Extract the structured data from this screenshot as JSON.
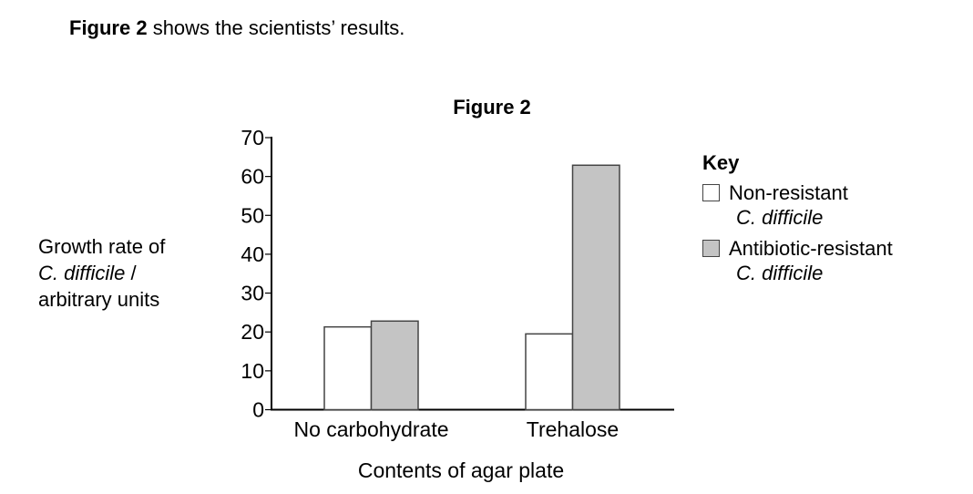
{
  "intro": {
    "bold": "Figure 2",
    "rest": " shows the scientists’ results."
  },
  "chart_data": {
    "type": "bar",
    "title": "Figure 2",
    "ylabel_lines": [
      "Growth rate of",
      "C. difficile",
      " /",
      "arbitrary units"
    ],
    "xlabel": "Contents of agar plate",
    "categories": [
      "No carbohydrate",
      "Trehalose"
    ],
    "series": [
      {
        "name": "Non-resistant C. difficile",
        "name_line1": "Non-resistant",
        "name_line2": "C. difficile",
        "color": "#ffffff",
        "values": [
          21.3,
          19.5
        ]
      },
      {
        "name": "Antibiotic-resistant C. difficile",
        "name_line1": "Antibiotic-resistant",
        "name_line2": "C. difficile",
        "color": "#c4c4c4",
        "values": [
          22.8,
          62.9
        ]
      }
    ],
    "ylim": [
      0,
      70
    ],
    "yticks": [
      0,
      10,
      20,
      30,
      40,
      50,
      60,
      70
    ],
    "legend_title": "Key",
    "legend_placement": "right",
    "grid": false
  }
}
